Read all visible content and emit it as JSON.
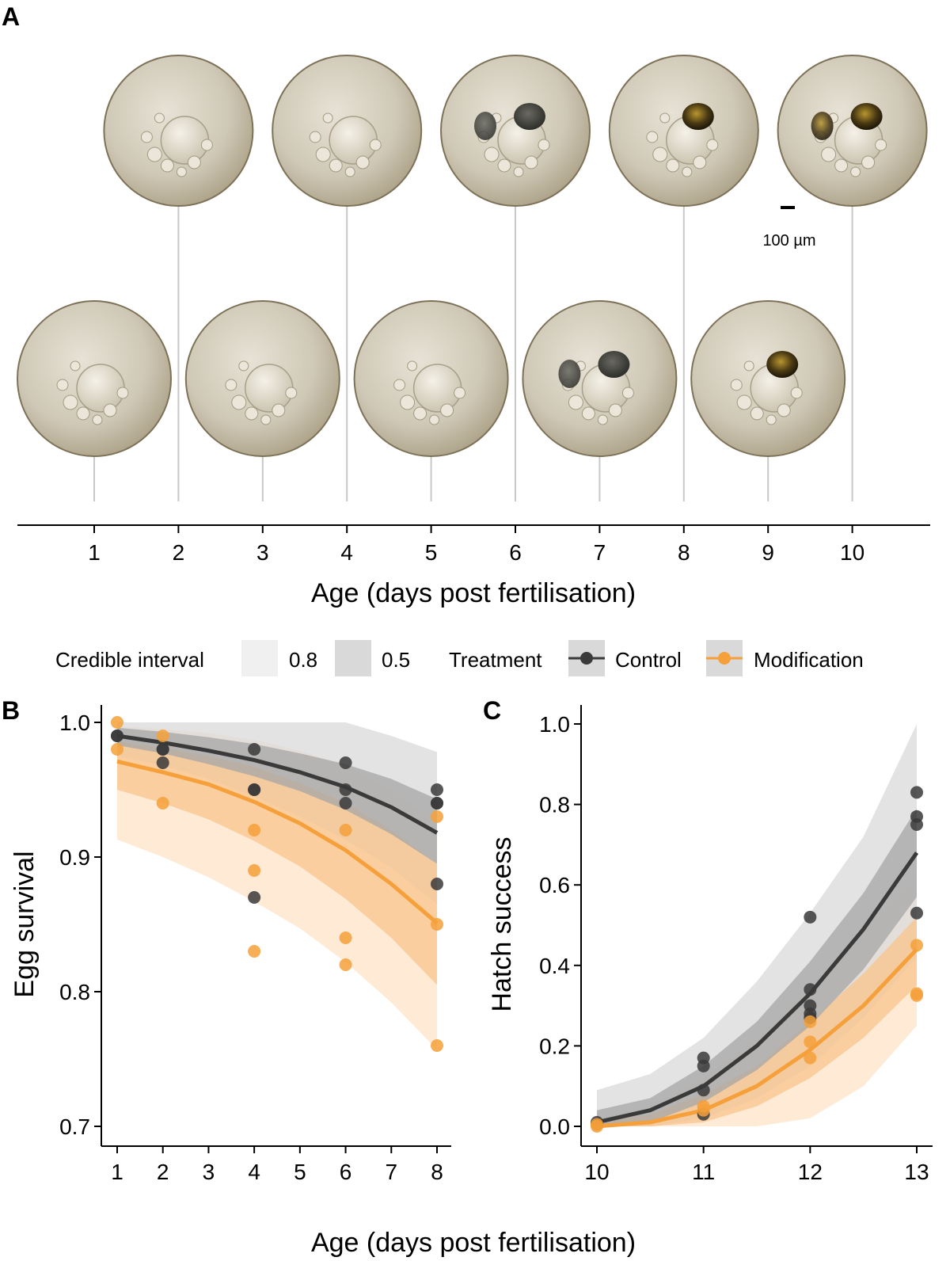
{
  "panel_labels": {
    "a": "A",
    "b": "B",
    "c": "C"
  },
  "scale_bar_label": "100 µm",
  "timeline": {
    "ticks": [
      "1",
      "2",
      "3",
      "4",
      "5",
      "6",
      "7",
      "8",
      "9",
      "10"
    ],
    "xlabel": "Age (days post fertilisation)"
  },
  "egg_images": [
    {
      "day": 1,
      "row": "bottom",
      "has_eyes": false
    },
    {
      "day": 2,
      "row": "top",
      "has_eyes": false
    },
    {
      "day": 3,
      "row": "bottom",
      "has_eyes": false
    },
    {
      "day": 4,
      "row": "top",
      "has_eyes": false
    },
    {
      "day": 5,
      "row": "bottom",
      "has_eyes": false
    },
    {
      "day": 6,
      "row": "top",
      "has_eyes": "grey"
    },
    {
      "day": 7,
      "row": "bottom",
      "has_eyes": "grey"
    },
    {
      "day": 8,
      "row": "top",
      "has_eyes": "pigmented"
    },
    {
      "day": 9,
      "row": "bottom",
      "has_eyes": "pigmented"
    },
    {
      "day": 10,
      "row": "top",
      "has_eyes": "pigmented"
    }
  ],
  "legend": {
    "ci_title": "Credible interval",
    "ci_levels": [
      "0.8",
      "0.5"
    ],
    "treatment_title": "Treatment",
    "treatments": [
      "Control",
      "Modification"
    ]
  },
  "colors": {
    "control": "#3a3a3a",
    "control_ci80": "#d9d9d9",
    "control_ci50": "#a6a6a6",
    "modification": "#f5a03a",
    "modification_ci80": "#fde3c7",
    "modification_ci50": "#f8c48b"
  },
  "shared_xlabel": "Age (days post fertilisation)",
  "chart_data": [
    {
      "panel": "B",
      "type": "line",
      "xlabel": "Age (days post fertilisation)",
      "ylabel": "Egg survival",
      "xlim": [
        1,
        8
      ],
      "ylim": [
        0.7,
        1.0
      ],
      "xticks": [
        "1",
        "2",
        "3",
        "4",
        "5",
        "6",
        "7",
        "8"
      ],
      "yticks": [
        "0.7",
        "0.8",
        "0.9",
        "1.0"
      ],
      "grid": false,
      "series": [
        {
          "name": "Control",
          "fit": {
            "x": [
              1,
              2,
              3,
              4,
              5,
              6,
              7,
              8
            ],
            "y": [
              0.99,
              0.985,
              0.979,
              0.972,
              0.963,
              0.952,
              0.937,
              0.918
            ]
          },
          "ci80_lower": [
            0.975,
            0.968,
            0.958,
            0.945,
            0.93,
            0.913,
            0.892,
            0.865
          ],
          "ci80_upper": [
            1.0,
            1.0,
            1.0,
            1.0,
            1.0,
            1.0,
            0.99,
            0.978
          ],
          "ci50_lower": [
            0.983,
            0.977,
            0.969,
            0.96,
            0.949,
            0.935,
            0.917,
            0.895
          ],
          "ci50_upper": [
            0.996,
            0.993,
            0.989,
            0.984,
            0.977,
            0.969,
            0.958,
            0.943
          ],
          "points": [
            [
              1,
              0.99
            ],
            [
              1,
              0.99
            ],
            [
              2,
              0.98
            ],
            [
              2,
              0.97
            ],
            [
              2,
              0.98
            ],
            [
              4,
              0.98
            ],
            [
              4,
              0.95
            ],
            [
              4,
              0.95
            ],
            [
              4,
              0.87
            ],
            [
              6,
              0.97
            ],
            [
              6,
              0.95
            ],
            [
              6,
              0.94
            ],
            [
              8,
              0.95
            ],
            [
              8,
              0.94
            ],
            [
              8,
              0.94
            ],
            [
              8,
              0.88
            ]
          ]
        },
        {
          "name": "Modification",
          "fit": {
            "x": [
              1,
              2,
              3,
              4,
              5,
              6,
              7,
              8
            ],
            "y": [
              0.971,
              0.963,
              0.954,
              0.941,
              0.925,
              0.905,
              0.88,
              0.851
            ]
          },
          "ci80_lower": [
            0.913,
            0.9,
            0.885,
            0.867,
            0.847,
            0.822,
            0.792,
            0.757
          ],
          "ci80_upper": [
            0.997,
            0.995,
            0.992,
            0.987,
            0.979,
            0.968,
            0.95,
            0.925
          ],
          "ci50_lower": [
            0.95,
            0.94,
            0.928,
            0.912,
            0.893,
            0.869,
            0.84,
            0.805
          ],
          "ci50_upper": [
            0.986,
            0.981,
            0.975,
            0.967,
            0.955,
            0.94,
            0.92,
            0.895
          ],
          "points": [
            [
              1,
              1.0
            ],
            [
              1,
              0.98
            ],
            [
              2,
              0.99
            ],
            [
              2,
              0.94
            ],
            [
              4,
              0.92
            ],
            [
              4,
              0.89
            ],
            [
              4,
              0.83
            ],
            [
              6,
              0.92
            ],
            [
              6,
              0.84
            ],
            [
              6,
              0.82
            ],
            [
              8,
              0.93
            ],
            [
              8,
              0.85
            ],
            [
              8,
              0.76
            ]
          ]
        }
      ]
    },
    {
      "panel": "C",
      "type": "line",
      "xlabel": "Age (days post fertilisation)",
      "ylabel": "Hatch success",
      "xlim": [
        10,
        13
      ],
      "ylim": [
        0.0,
        1.0
      ],
      "xticks": [
        "10",
        "11",
        "12",
        "13"
      ],
      "yticks": [
        "0.0",
        "0.2",
        "0.4",
        "0.6",
        "0.8",
        "1.0"
      ],
      "grid": false,
      "series": [
        {
          "name": "Control",
          "fit": {
            "x": [
              10,
              10.5,
              11,
              11.5,
              12,
              12.5,
              13
            ],
            "y": [
              0.01,
              0.04,
              0.1,
              0.2,
              0.33,
              0.49,
              0.68
            ]
          },
          "ci80_lower": [
            0.0,
            0.0,
            0.02,
            0.07,
            0.15,
            0.27,
            0.42
          ],
          "ci80_upper": [
            0.09,
            0.13,
            0.22,
            0.36,
            0.53,
            0.72,
            1.0
          ],
          "ci50_lower": [
            0.0,
            0.01,
            0.06,
            0.14,
            0.25,
            0.39,
            0.57
          ],
          "ci50_upper": [
            0.04,
            0.07,
            0.15,
            0.26,
            0.41,
            0.58,
            0.79
          ],
          "points": [
            [
              10,
              0.01
            ],
            [
              10,
              0.005
            ],
            [
              11,
              0.17
            ],
            [
              11,
              0.15
            ],
            [
              11,
              0.09
            ],
            [
              11,
              0.03
            ],
            [
              12,
              0.52
            ],
            [
              12,
              0.34
            ],
            [
              12,
              0.3
            ],
            [
              12,
              0.28
            ],
            [
              12,
              0.27
            ],
            [
              13,
              0.83
            ],
            [
              13,
              0.77
            ],
            [
              13,
              0.75
            ],
            [
              13,
              0.53
            ]
          ]
        },
        {
          "name": "Modification",
          "fit": {
            "x": [
              10,
              10.5,
              11,
              11.5,
              12,
              12.5,
              13
            ],
            "y": [
              0.0,
              0.01,
              0.04,
              0.1,
              0.19,
              0.3,
              0.44
            ]
          },
          "ci80_lower": [
            0.0,
            0.0,
            0.0,
            0.0,
            0.02,
            0.1,
            0.25
          ],
          "ci80_upper": [
            0.02,
            0.05,
            0.12,
            0.22,
            0.35,
            0.49,
            0.62
          ],
          "ci50_lower": [
            0.0,
            0.0,
            0.01,
            0.05,
            0.12,
            0.22,
            0.35
          ],
          "ci50_upper": [
            0.01,
            0.03,
            0.08,
            0.15,
            0.26,
            0.38,
            0.52
          ],
          "points": [
            [
              10,
              0.0
            ],
            [
              10,
              0.005
            ],
            [
              11,
              0.05
            ],
            [
              11,
              0.04
            ],
            [
              12,
              0.26
            ],
            [
              12,
              0.21
            ],
            [
              12,
              0.17
            ],
            [
              13,
              0.45
            ],
            [
              13,
              0.33
            ],
            [
              13,
              0.325
            ]
          ]
        }
      ]
    }
  ]
}
